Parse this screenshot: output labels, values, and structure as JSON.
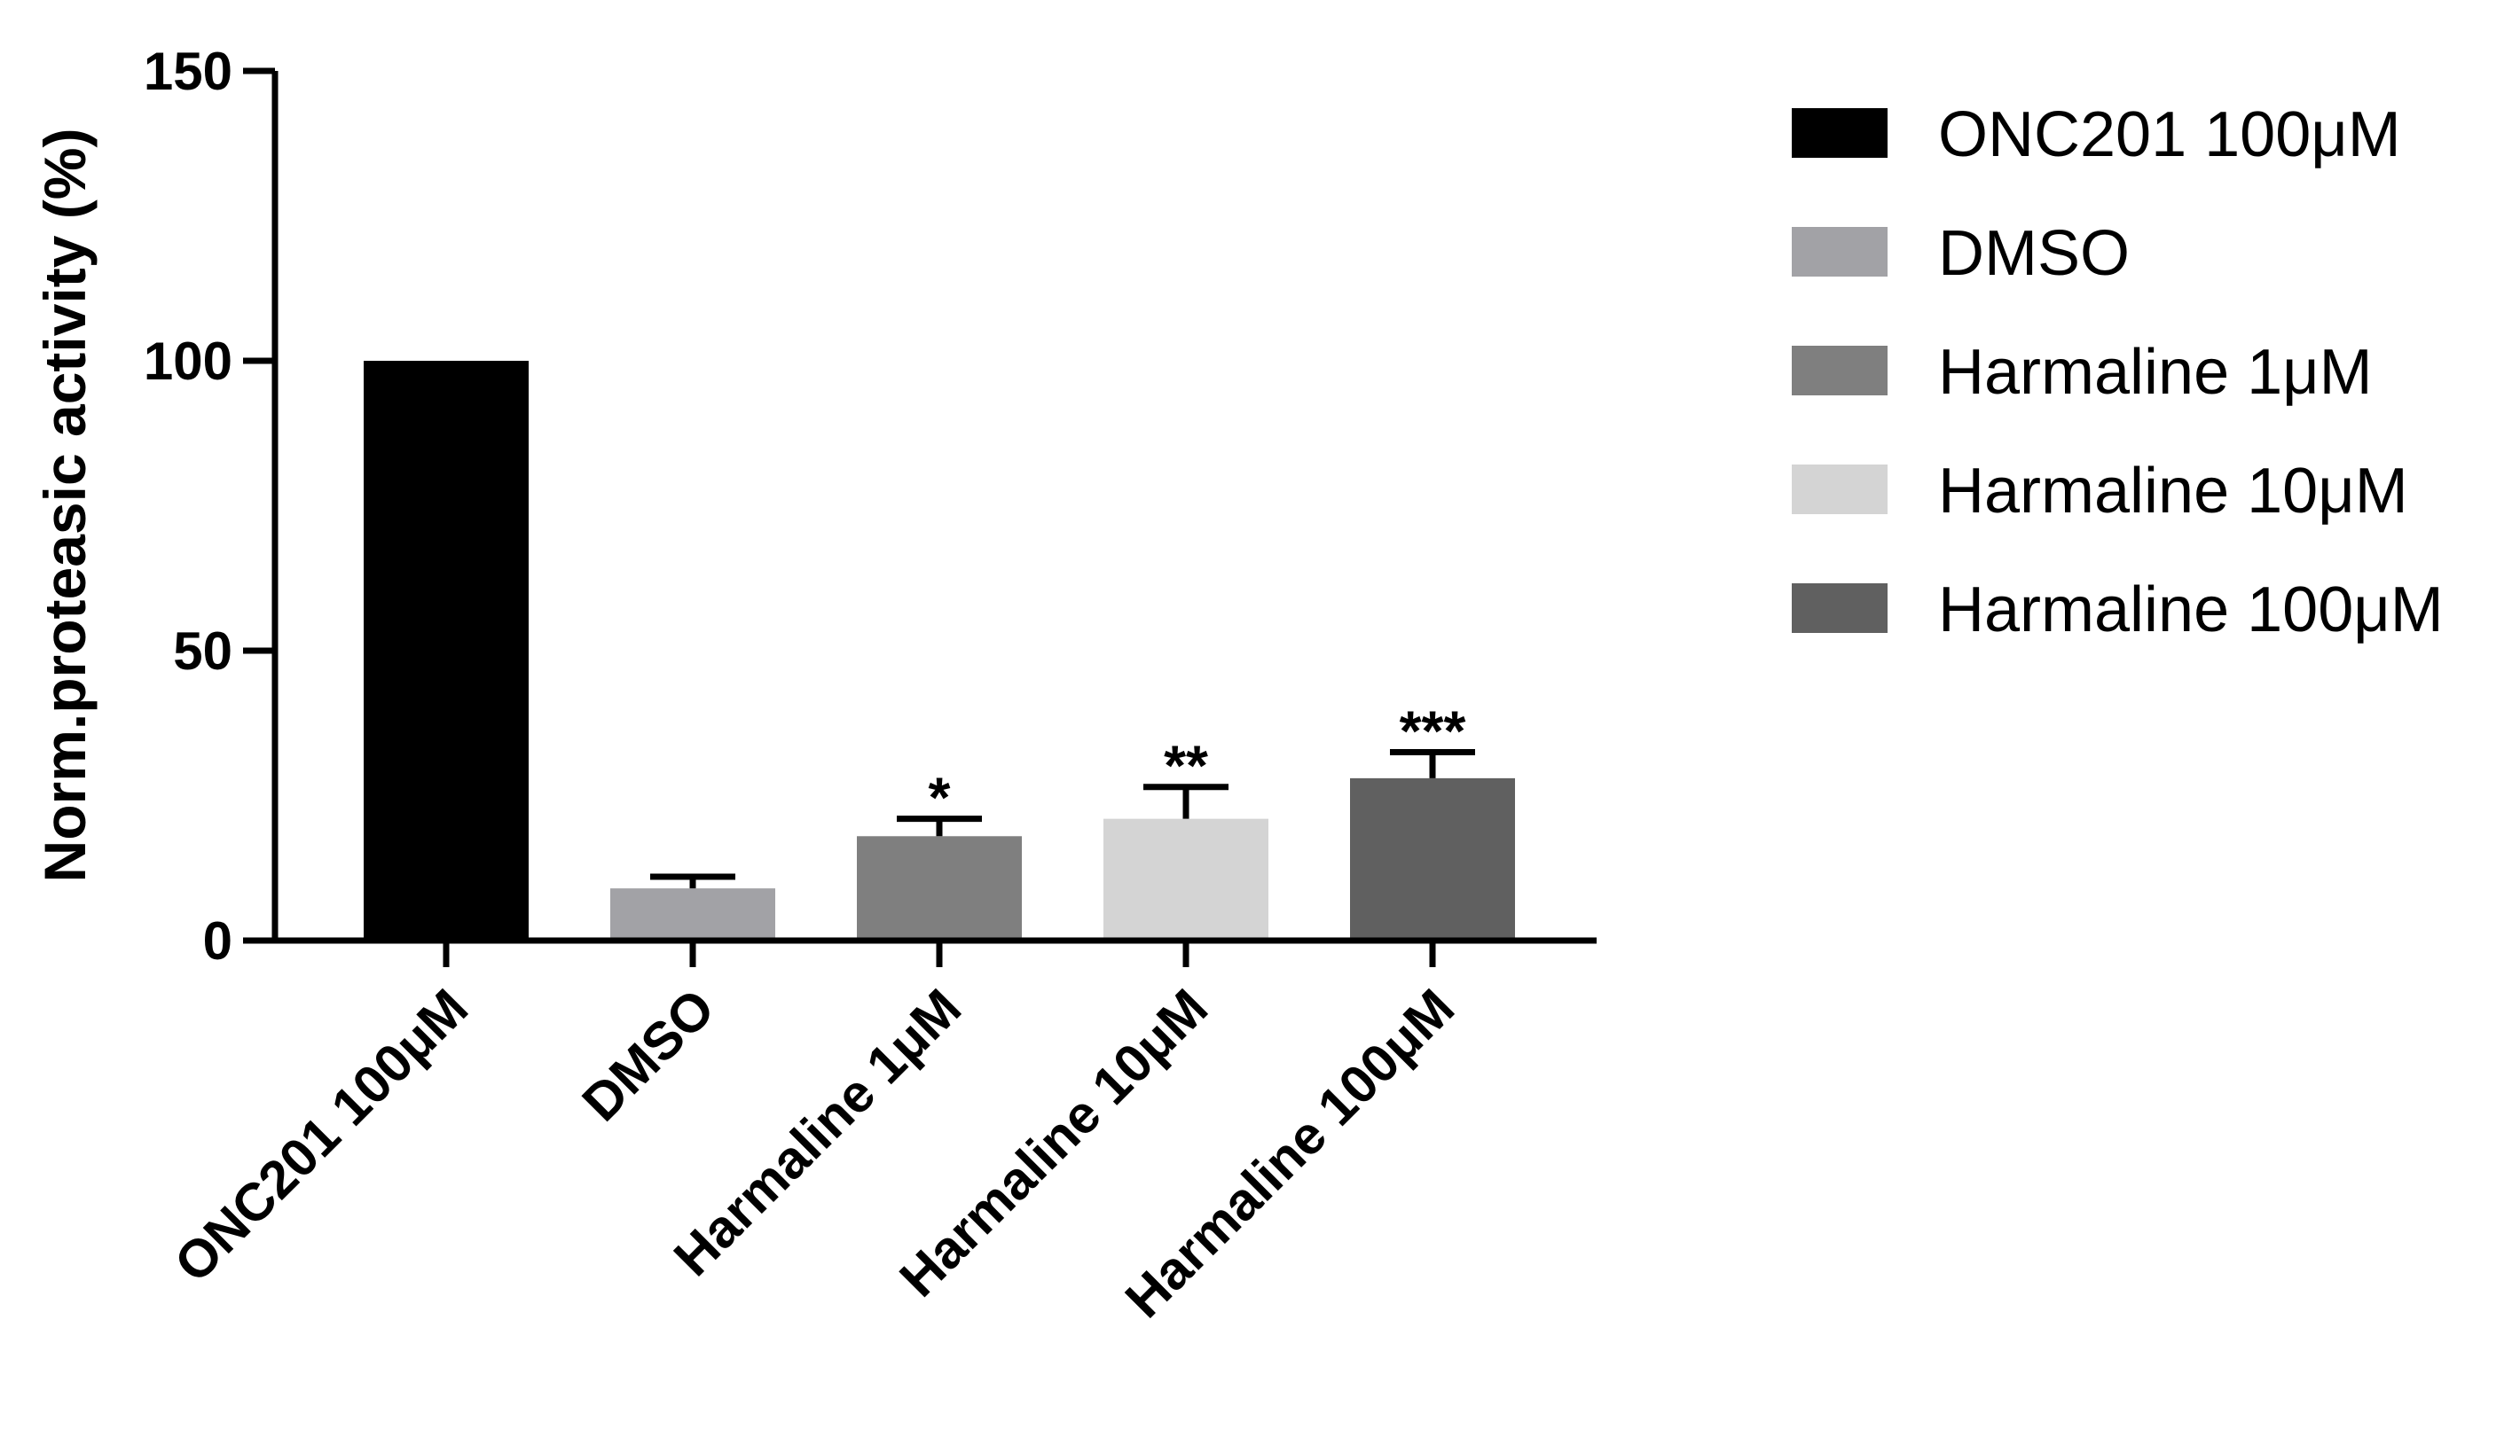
{
  "chart_data": {
    "type": "bar",
    "title": "",
    "xlabel": "",
    "ylabel": "Norm.proteasic activity (%)",
    "ylim": [
      0,
      150
    ],
    "yticks": [
      0,
      50,
      100,
      150
    ],
    "categories": [
      "ONC201 100μM",
      "DMSO",
      "Harmaline 1μM",
      "Harmaline 10μM",
      "Harmaline 100μM"
    ],
    "values": [
      100,
      9,
      18,
      21,
      28
    ],
    "error_upper": [
      null,
      11,
      21,
      26.5,
      32.5
    ],
    "significance": [
      "",
      "",
      "*",
      "**",
      "***"
    ],
    "colors": [
      "#000000",
      "#a2a2a6",
      "#7f7f7f",
      "#d4d4d4",
      "#606060"
    ],
    "legend": {
      "placement": "right",
      "entries": [
        "ONC201 100μM",
        "DMSO",
        "Harmaline 1μM",
        "Harmaline 10μM",
        "Harmaline 100μM"
      ]
    },
    "grid": false
  }
}
